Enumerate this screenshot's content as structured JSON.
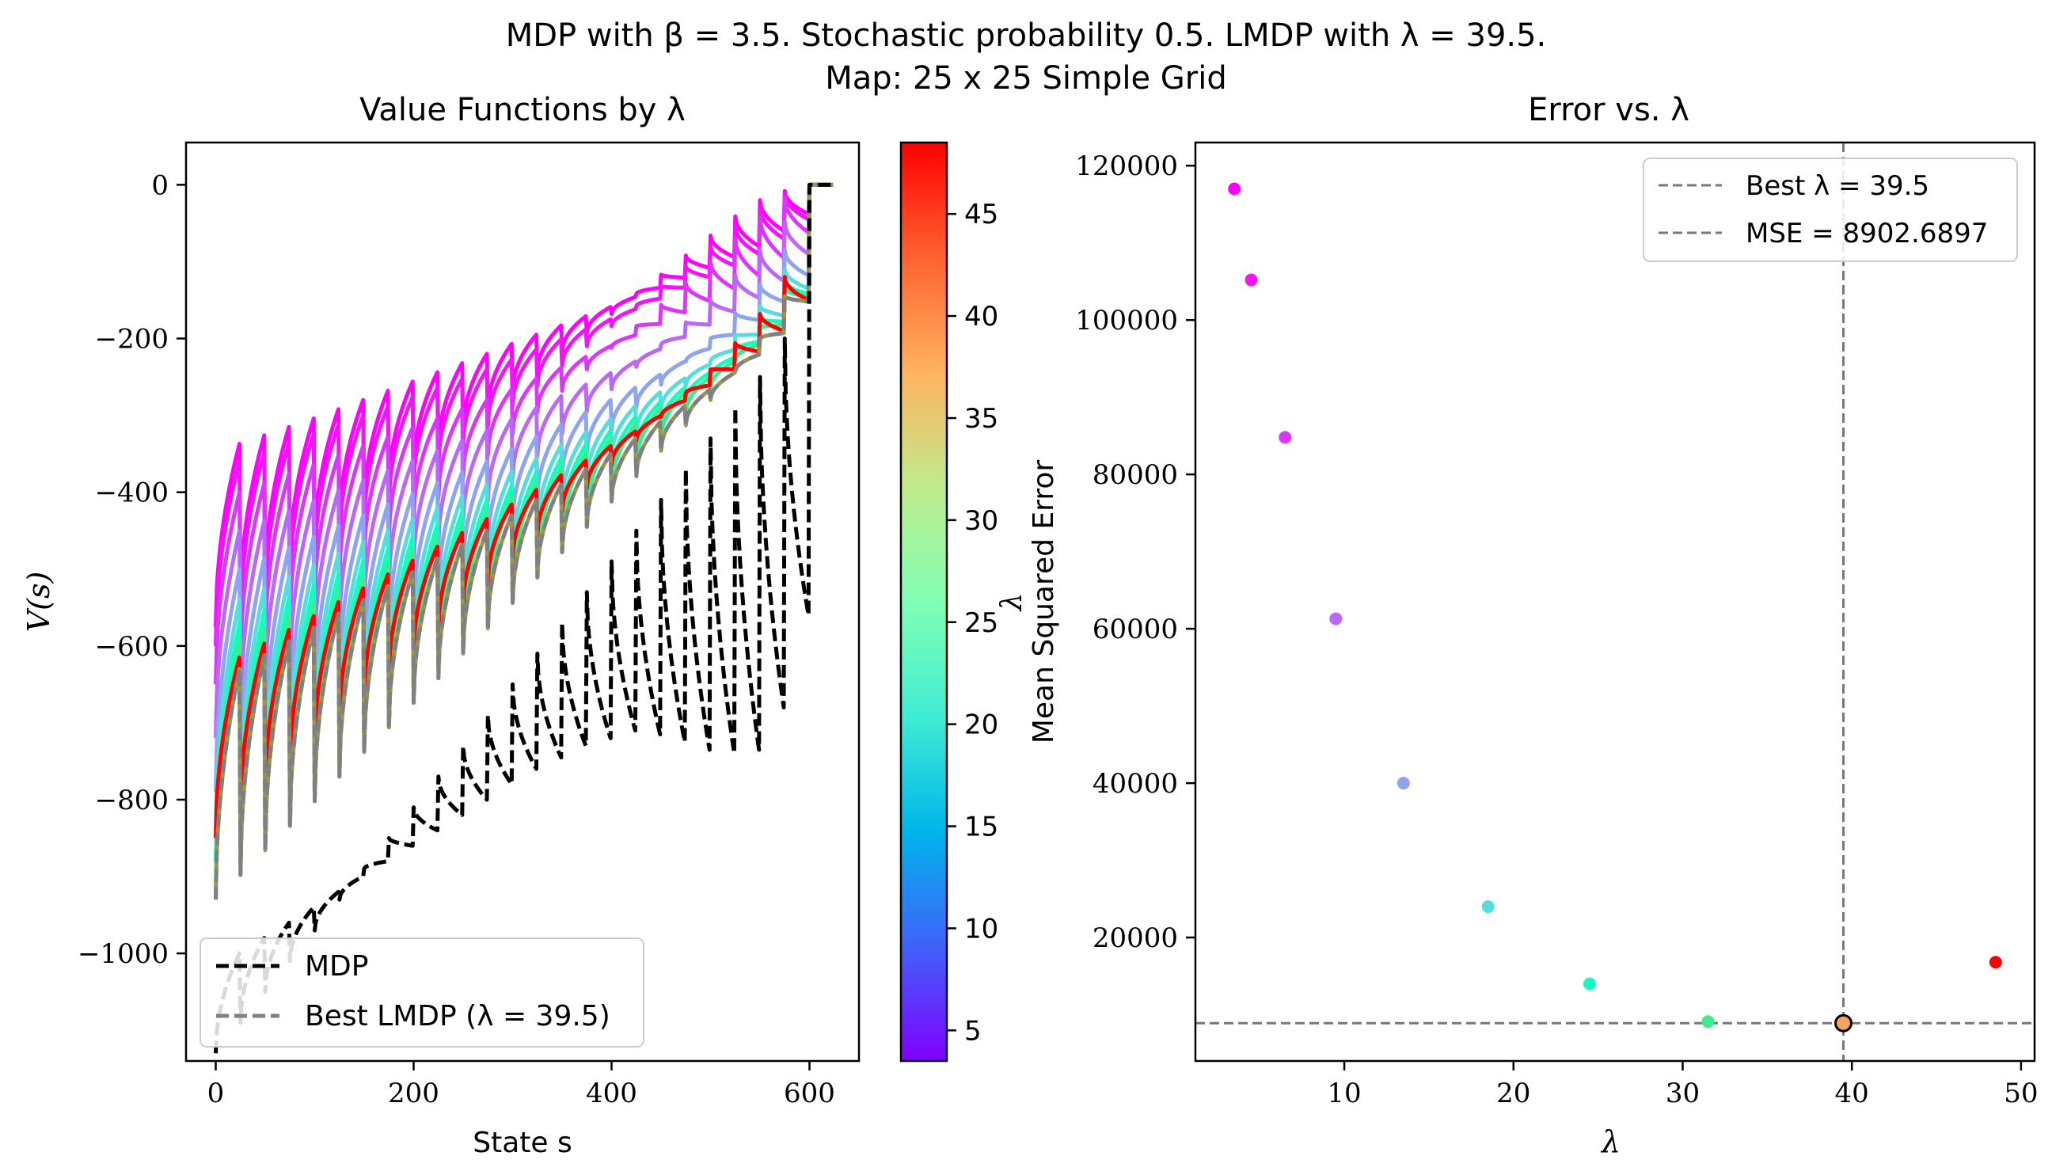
{
  "suptitle": {
    "line1": "MDP with β = 3.5. Stochastic probability 0.5. LMDP with λ = 39.5.",
    "line2": "Map: 25 x 25 Simple Grid"
  },
  "chart_data": [
    {
      "type": "line",
      "title": "Value Functions by λ",
      "xlabel": "State s",
      "ylabel": "V(s)",
      "xlim": [
        -30,
        650
      ],
      "ylim": [
        -1140,
        55
      ],
      "xticks": [
        0,
        200,
        400,
        600
      ],
      "xtick_labels": [
        "0",
        "200",
        "400",
        "600"
      ],
      "yticks": [
        0,
        -200,
        -400,
        -600,
        -800,
        -1000
      ],
      "ytick_labels": [
        "0",
        "−200",
        "−400",
        "−600",
        "−800",
        "−1000"
      ],
      "grid": false,
      "legend": {
        "placement": "lower-left",
        "entries": [
          "MDP",
          "Best LMDP (λ = 39.5)"
        ]
      },
      "colorbar": {
        "colormap": "rainbow",
        "range": [
          3.5,
          48.5
        ],
        "ticks": [
          5,
          10,
          15,
          20,
          25,
          30,
          35,
          40,
          45
        ],
        "tick_labels": [
          "5",
          "10",
          "15",
          "20",
          "25",
          "30",
          "35",
          "40",
          "45"
        ],
        "label": "λ"
      },
      "grid_size": 25,
      "states": 625,
      "series": [
        {
          "lambda": 3.5,
          "row_start": [
            -575,
            -548,
            -522,
            -497,
            -472,
            -446,
            -421,
            -396,
            -370,
            -345,
            -320,
            -294,
            -269,
            -244,
            -218,
            -193,
            -168,
            -142,
            -117,
            -92,
            -66,
            -41,
            -20,
            -8,
            0
          ],
          "row_end": [
            -337,
            -326,
            -315,
            -304,
            -292,
            -280,
            -268,
            -256,
            -244,
            -232,
            -220,
            -207,
            -195,
            -183,
            -171,
            -159,
            -146,
            -134,
            -121,
            -108,
            -94,
            -80,
            -60,
            -38,
            0
          ]
        },
        {
          "lambda": 4.5,
          "row_start": [
            -600,
            -574,
            -548,
            -522,
            -496,
            -470,
            -444,
            -418,
            -392,
            -366,
            -340,
            -314,
            -288,
            -262,
            -236,
            -210,
            -184,
            -158,
            -132,
            -106,
            -80,
            -54,
            -30,
            -12,
            0
          ],
          "row_end": [
            -360,
            -348,
            -336,
            -324,
            -312,
            -300,
            -288,
            -276,
            -264,
            -252,
            -240,
            -227,
            -214,
            -201,
            -188,
            -175,
            -162,
            -148,
            -134,
            -120,
            -105,
            -90,
            -70,
            -45,
            0
          ]
        },
        {
          "lambda": 6.5,
          "row_start": [
            -650,
            -623,
            -596,
            -569,
            -542,
            -515,
            -488,
            -461,
            -434,
            -407,
            -380,
            -352,
            -324,
            -296,
            -268,
            -240,
            -212,
            -184,
            -156,
            -128,
            -100,
            -70,
            -42,
            -18,
            0
          ],
          "row_end": [
            -400,
            -388,
            -376,
            -364,
            -352,
            -340,
            -328,
            -316,
            -304,
            -292,
            -280,
            -266,
            -252,
            -238,
            -224,
            -210,
            -196,
            -181,
            -166,
            -151,
            -135,
            -118,
            -95,
            -62,
            0
          ]
        },
        {
          "lambda": 9.5,
          "row_start": [
            -720,
            -692,
            -664,
            -636,
            -608,
            -580,
            -552,
            -524,
            -496,
            -468,
            -440,
            -411,
            -382,
            -353,
            -324,
            -295,
            -266,
            -237,
            -208,
            -179,
            -150,
            -118,
            -85,
            -48,
            0
          ],
          "row_end": [
            -450,
            -437,
            -424,
            -411,
            -398,
            -385,
            -372,
            -359,
            -346,
            -333,
            -320,
            -305,
            -290,
            -275,
            -260,
            -245,
            -230,
            -214,
            -198,
            -182,
            -165,
            -147,
            -125,
            -90,
            0
          ]
        },
        {
          "lambda": 13.5,
          "row_start": [
            -790,
            -761,
            -732,
            -703,
            -674,
            -645,
            -616,
            -587,
            -558,
            -529,
            -500,
            -470,
            -440,
            -410,
            -380,
            -350,
            -320,
            -290,
            -260,
            -230,
            -200,
            -167,
            -130,
            -85,
            0
          ],
          "row_end": [
            -500,
            -486,
            -472,
            -458,
            -444,
            -430,
            -416,
            -402,
            -388,
            -374,
            -360,
            -344,
            -328,
            -312,
            -296,
            -280,
            -264,
            -247,
            -230,
            -213,
            -195,
            -176,
            -152,
            -118,
            0
          ]
        },
        {
          "lambda": 18.5,
          "row_start": [
            -840,
            -810,
            -780,
            -750,
            -720,
            -690,
            -660,
            -630,
            -600,
            -570,
            -540,
            -509,
            -478,
            -447,
            -416,
            -385,
            -354,
            -323,
            -292,
            -261,
            -230,
            -196,
            -158,
            -110,
            0
          ],
          "row_end": [
            -540,
            -525,
            -510,
            -495,
            -480,
            -465,
            -450,
            -435,
            -420,
            -405,
            -390,
            -373,
            -356,
            -339,
            -322,
            -305,
            -288,
            -270,
            -252,
            -234,
            -215,
            -195,
            -170,
            -135,
            0
          ]
        },
        {
          "lambda": 24.5,
          "row_start": [
            -880,
            -849,
            -818,
            -787,
            -756,
            -725,
            -694,
            -663,
            -632,
            -601,
            -570,
            -538,
            -506,
            -474,
            -442,
            -410,
            -378,
            -346,
            -314,
            -282,
            -250,
            -215,
            -175,
            -125,
            0
          ],
          "row_end": [
            -570,
            -554,
            -538,
            -522,
            -506,
            -490,
            -474,
            -458,
            -442,
            -426,
            -410,
            -392,
            -374,
            -356,
            -338,
            -320,
            -302,
            -283,
            -264,
            -245,
            -225,
            -204,
            -178,
            -142,
            0
          ]
        },
        {
          "lambda": 31.5,
          "row_start": [
            -915,
            -883,
            -851,
            -819,
            -787,
            -755,
            -723,
            -691,
            -659,
            -627,
            -595,
            -562,
            -529,
            -496,
            -463,
            -430,
            -397,
            -364,
            -331,
            -298,
            -265,
            -228,
            -186,
            -135,
            0
          ],
          "row_end": [
            -595,
            -578,
            -561,
            -544,
            -527,
            -510,
            -493,
            -476,
            -459,
            -442,
            -425,
            -406,
            -387,
            -368,
            -349,
            -330,
            -311,
            -291,
            -271,
            -251,
            -230,
            -208,
            -182,
            -146,
            0
          ]
        },
        {
          "lambda": 48.5,
          "row_start": [
            -850,
            -820,
            -790,
            -760,
            -730,
            -700,
            -670,
            -640,
            -610,
            -580,
            -550,
            -519,
            -488,
            -457,
            -426,
            -395,
            -364,
            -333,
            -302,
            -271,
            -240,
            -206,
            -168,
            -120,
            0
          ],
          "row_end": [
            -615,
            -597,
            -579,
            -561,
            -543,
            -525,
            -507,
            -489,
            -471,
            -453,
            -435,
            -416,
            -397,
            -378,
            -359,
            -340,
            -321,
            -301,
            -281,
            -261,
            -240,
            -217,
            -190,
            -150,
            0
          ]
        },
        {
          "lambda": 39.5,
          "name": "Best LMDP (λ = 39.5)",
          "row_start": [
            -930,
            -898,
            -866,
            -834,
            -802,
            -770,
            -738,
            -706,
            -674,
            -642,
            -610,
            -577,
            -544,
            -511,
            -478,
            -445,
            -412,
            -379,
            -346,
            -313,
            -280,
            -243,
            -200,
            -145,
            0
          ],
          "row_end": [
            -630,
            -612,
            -594,
            -576,
            -558,
            -540,
            -522,
            -504,
            -486,
            -468,
            -450,
            -430,
            -410,
            -390,
            -370,
            -350,
            -330,
            -309,
            -288,
            -267,
            -245,
            -221,
            -193,
            -152,
            0
          ]
        },
        {
          "name": "MDP",
          "row_start": [
            -1130,
            -1090,
            -1050,
            -1010,
            -970,
            -930,
            -890,
            -850,
            -810,
            -770,
            -730,
            -690,
            -650,
            -610,
            -570,
            -530,
            -490,
            -450,
            -410,
            -370,
            -330,
            -290,
            -250,
            -200,
            0
          ],
          "row_end": [
            -1000,
            -980,
            -960,
            -940,
            -920,
            -900,
            -880,
            -860,
            -840,
            -820,
            -800,
            -780,
            -760,
            -745,
            -730,
            -720,
            -710,
            -715,
            -725,
            -735,
            -740,
            -735,
            -680,
            -560,
            0
          ]
        }
      ]
    },
    {
      "type": "scatter",
      "title": "Error vs. λ",
      "xlabel": "λ",
      "ylabel": "Mean Squared Error",
      "xlim": [
        1.2,
        50.8
      ],
      "ylim": [
        4000,
        123000
      ],
      "xticks": [
        10,
        20,
        30,
        40,
        50
      ],
      "xtick_labels": [
        "10",
        "20",
        "30",
        "40",
        "50"
      ],
      "yticks": [
        20000,
        40000,
        60000,
        80000,
        100000,
        120000
      ],
      "ytick_labels": [
        "20000",
        "40000",
        "60000",
        "80000",
        "100000",
        "120000"
      ],
      "grid": false,
      "legend": {
        "placement": "top-right",
        "entries": [
          "Best λ = 39.5",
          "MSE = 8902.6897"
        ]
      },
      "best": {
        "x": 39.5,
        "y": 8902.6897
      },
      "points": [
        {
          "x": 3.5,
          "y": 117000
        },
        {
          "x": 4.5,
          "y": 105200
        },
        {
          "x": 6.5,
          "y": 84800
        },
        {
          "x": 9.5,
          "y": 61300
        },
        {
          "x": 13.5,
          "y": 40000
        },
        {
          "x": 18.5,
          "y": 24000
        },
        {
          "x": 24.5,
          "y": 14000
        },
        {
          "x": 31.5,
          "y": 9100
        },
        {
          "x": 39.5,
          "y": 8902.6897
        },
        {
          "x": 48.5,
          "y": 16800
        }
      ],
      "best_marker_color": "#f4a460"
    }
  ]
}
